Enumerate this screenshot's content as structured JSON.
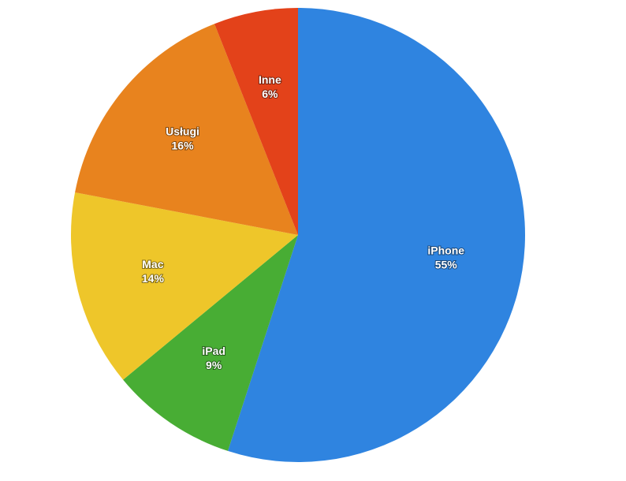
{
  "chart_data": {
    "type": "pie",
    "categories": [
      "iPhone",
      "iPad",
      "Mac",
      "Usługi",
      "Inne"
    ],
    "values": [
      55,
      9,
      14,
      16,
      6
    ],
    "value_labels": [
      "55%",
      "9%",
      "14%",
      "16%",
      "6%"
    ],
    "colors": [
      "#2f84e0",
      "#48ad34",
      "#eec62a",
      "#e8831e",
      "#e3421a"
    ]
  }
}
